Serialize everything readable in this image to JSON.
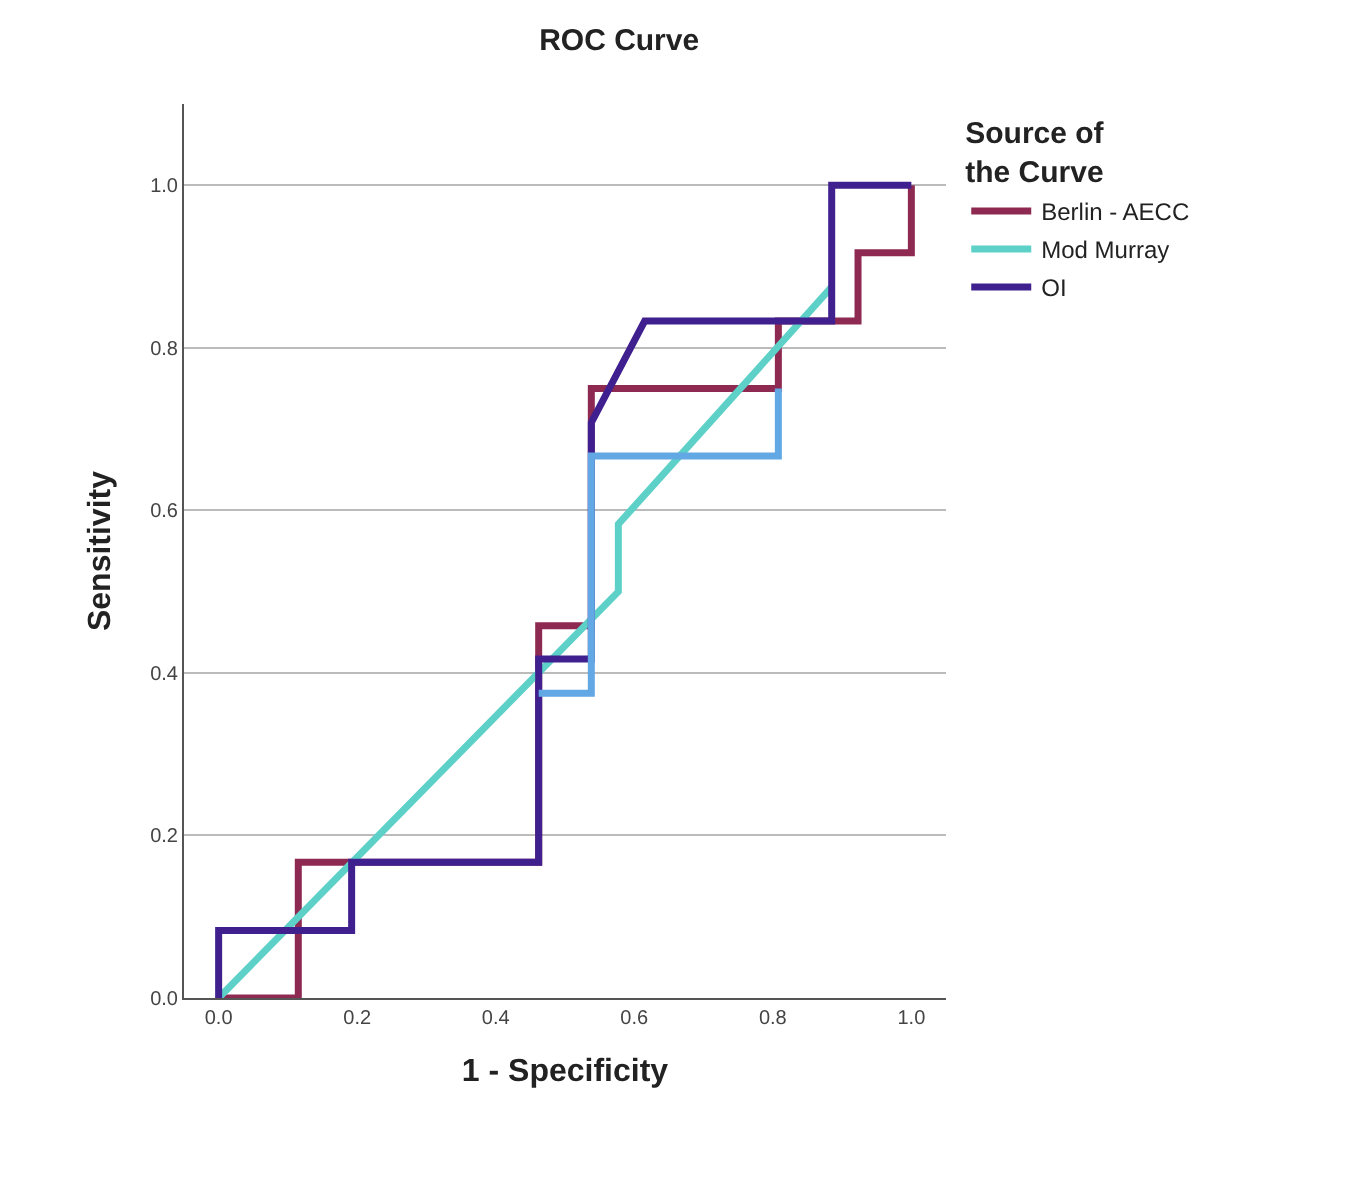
{
  "chart_data": {
    "type": "line",
    "title": "ROC Curve",
    "xlabel": "1 - Specificity",
    "ylabel": "Sensitivity",
    "legend_title": "Source of the Curve",
    "series": [
      {
        "name": "Berlin - AECC",
        "color": "#8e2a52",
        "x": [
          0,
          0.115,
          0.115,
          0.192,
          0.462,
          0.462,
          0.538,
          0.538,
          0.808,
          0.808,
          0.923,
          0.923,
          1,
          1
        ],
        "values": [
          0,
          0,
          0.167,
          0.167,
          0.167,
          0.458,
          0.458,
          0.75,
          0.75,
          0.833,
          0.833,
          0.917,
          0.917,
          1
        ]
      },
      {
        "name": "Mod Murray",
        "color": "#5dd0c8",
        "x": [
          0,
          0.577,
          0.577,
          0.885
        ],
        "values": [
          0,
          0.5,
          0.583,
          0.875
        ]
      },
      {
        "name": "OI",
        "color": "#40208f",
        "x": [
          0,
          0,
          0.192,
          0.192,
          0.462,
          0.462,
          0.538,
          0.538,
          0.615,
          0.885,
          0.885,
          1
        ],
        "values": [
          0,
          0.083,
          0.083,
          0.167,
          0.167,
          0.417,
          0.417,
          0.708,
          0.833,
          0.833,
          1,
          1
        ]
      },
      {
        "color": "#62a8e5",
        "x": [
          0.462,
          0.538,
          0.538,
          0.808,
          0.808
        ],
        "values": [
          0.375,
          0.375,
          0.667,
          0.667,
          0.75
        ]
      }
    ],
    "xlim": [
      -0.05,
      1.05
    ],
    "ylim": [
      0,
      1.1
    ],
    "xticks": [
      {
        "value": 0,
        "label": "0.0"
      },
      {
        "value": 0.2,
        "label": "0.2"
      },
      {
        "value": 0.4,
        "label": "0.4"
      },
      {
        "value": 0.6,
        "label": "0.6"
      },
      {
        "value": 0.8,
        "label": "0.8"
      },
      {
        "value": 1,
        "label": "1.0"
      }
    ],
    "yticks": [
      {
        "value": 0,
        "label": "0.0"
      },
      {
        "value": 0.2,
        "label": "0.2"
      },
      {
        "value": 0.4,
        "label": "0.4"
      },
      {
        "value": 0.6,
        "label": "0.6"
      },
      {
        "value": 0.8,
        "label": "0.8"
      },
      {
        "value": 1,
        "label": "1.0"
      }
    ],
    "grid": "y",
    "legend": "top right",
    "marker": "none",
    "line_style": "solid"
  }
}
